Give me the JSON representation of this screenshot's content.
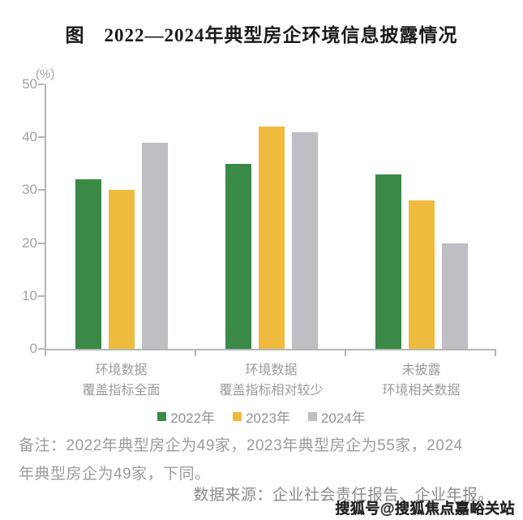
{
  "chart_data": {
    "type": "bar",
    "title": "图　2022—2024年典型房企环境信息披露情况",
    "unit_label": "(%)",
    "categories": [
      [
        "环境数据",
        "覆盖指标全面"
      ],
      [
        "环境数据",
        "覆盖指标相对较少"
      ],
      [
        "未披露",
        "环境相关数据"
      ]
    ],
    "series": [
      {
        "name": "2022年",
        "color": "#3a8947",
        "values": [
          32,
          35,
          33
        ]
      },
      {
        "name": "2023年",
        "color": "#eebb3e",
        "values": [
          30,
          42,
          28
        ]
      },
      {
        "name": "2024年",
        "color": "#bdbfc3",
        "values": [
          39,
          41,
          20
        ]
      }
    ],
    "ylim": [
      0,
      50
    ],
    "yticks": [
      0,
      10,
      20,
      30,
      40,
      50
    ],
    "grid": false,
    "legend_position": "bottom"
  },
  "notes": {
    "lines": [
      "备注：2022年典型房企为49家，2023年典型房企为55家，2024",
      "年典型房企为49家，下同。"
    ]
  },
  "source": "数据来源：企业社会责任报告、企业年报。",
  "watermark": "搜狐号@搜狐焦点嘉峪关站",
  "colors": {
    "axis": "#b3b6ba",
    "tick_label": "#9fa3a7",
    "note_text": "#9c9c9c",
    "source_text": "#8a8a8a",
    "title_text": "#1a1a1a",
    "watermark_text": "#454545"
  }
}
